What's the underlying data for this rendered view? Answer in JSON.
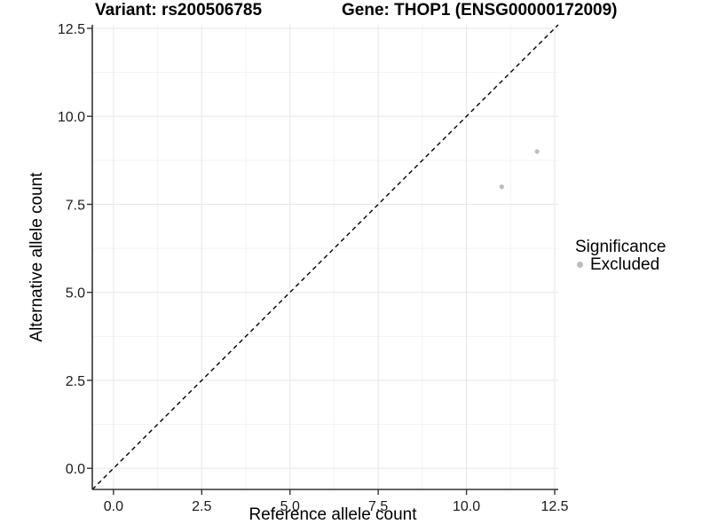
{
  "figure": {
    "titles": {
      "left": "Variant: rs200506785",
      "right": "Gene: THOP1 (ENSG00000172009)"
    },
    "x_axis_label": "Reference allele count",
    "y_axis_label": "Alternative allele count",
    "legend": {
      "title": "Significance",
      "items": [
        {
          "label": "Excluded",
          "color": "#bdbdbd"
        }
      ]
    }
  },
  "chart_data": {
    "type": "scatter",
    "title_left": "Variant: rs200506785",
    "title_right": "Gene: THOP1 (ENSG00000172009)",
    "xlabel": "Reference allele count",
    "ylabel": "Alternative allele count",
    "xlim": [
      -0.6,
      12.6
    ],
    "ylim": [
      -0.6,
      12.6
    ],
    "x_ticks": [
      0,
      2.5,
      5,
      7.5,
      10,
      12.5
    ],
    "x_tick_labels": [
      "0.0",
      "2.5",
      "5.0",
      "7.5",
      "10.0",
      "12.5"
    ],
    "y_ticks": [
      0,
      2.5,
      5,
      7.5,
      10,
      12.5
    ],
    "y_tick_labels": [
      "0.0",
      "2.5",
      "5.0",
      "7.5",
      "10.0",
      "12.5"
    ],
    "x_minor_ticks": [
      1.25,
      3.75,
      6.25,
      8.75,
      11.25
    ],
    "y_minor_ticks": [
      1.25,
      3.75,
      6.25,
      8.75,
      11.25
    ],
    "grid": true,
    "legend_position": "right",
    "series": [
      {
        "name": "Excluded",
        "color": "#bdbdbd",
        "marker": "circle",
        "points": [
          {
            "x": 11,
            "y": 8
          },
          {
            "x": 12,
            "y": 9
          }
        ]
      }
    ],
    "reference_line": {
      "slope": 1,
      "intercept": 0,
      "style": "dashed",
      "color": "#000000"
    }
  },
  "style": {
    "background": "#ffffff",
    "grid_major": "#e8e8e8",
    "grid_minor": "#f3f3f3",
    "axis_color": "#333333",
    "tick_color": "#333333",
    "text_color": "#000000"
  }
}
